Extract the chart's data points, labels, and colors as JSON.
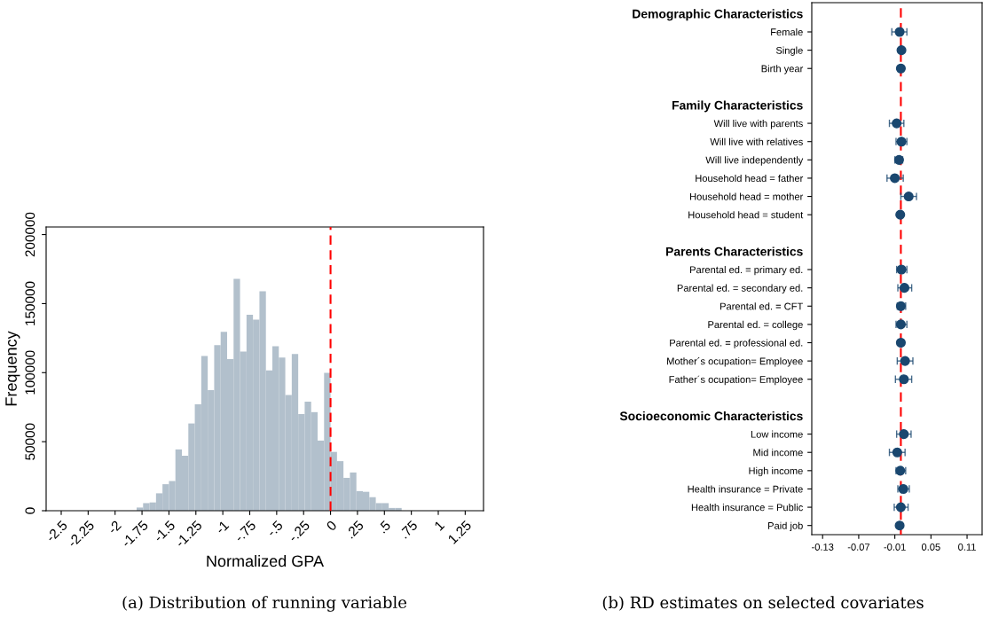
{
  "chart_data": [
    {
      "type": "histogram",
      "xlabel": "Normalized GPA",
      "ylabel": "Frequency",
      "color": "#b2c0cc",
      "bins": [
        -1.98,
        -1.92,
        -1.86,
        -1.8,
        -1.74,
        -1.68,
        -1.62,
        -1.56,
        -1.5,
        -1.44,
        -1.38,
        -1.32,
        -1.26,
        -1.2,
        -1.14,
        -1.08,
        -1.02,
        -0.96,
        -0.9,
        -0.84,
        -0.78,
        -0.72,
        -0.66,
        -0.6,
        -0.54,
        -0.48,
        -0.42,
        -0.36,
        -0.3,
        -0.24,
        -0.18,
        -0.12,
        -0.06,
        0,
        0.06,
        0.12,
        0.18,
        0.24,
        0.3,
        0.36,
        0.42,
        0.48,
        0.54,
        0.6,
        0.66,
        0.72,
        0.78
      ],
      "values": [
        null,
        null,
        null,
        2300,
        5500,
        6000,
        12600,
        19200,
        21500,
        44400,
        39800,
        63200,
        77100,
        112100,
        87400,
        119900,
        129500,
        109800,
        168000,
        115300,
        141900,
        138400,
        159000,
        101600,
        119200,
        111000,
        83800,
        113500,
        70000,
        79000,
        71400,
        50800,
        99800,
        42600,
        35900,
        23800,
        27700,
        14200,
        13700,
        9800,
        5500,
        5500,
        2000,
        2000,
        null,
        null
      ],
      "xlim": [
        -2.64,
        1.42
      ],
      "ylim": [
        0,
        205500
      ],
      "xticks": [
        {
          "value": -2.5,
          "label": "-2.5"
        },
        {
          "value": -2.25,
          "label": "-2.25"
        },
        {
          "value": -2,
          "label": "-2"
        },
        {
          "value": -1.75,
          "label": "-1.75"
        },
        {
          "value": -1.5,
          "label": "-1.5"
        },
        {
          "value": -1.25,
          "label": "-1.25"
        },
        {
          "value": -1,
          "label": "-1"
        },
        {
          "value": -0.75,
          "label": "-.75"
        },
        {
          "value": -0.5,
          "label": "-.5"
        },
        {
          "value": -0.25,
          "label": "-.25"
        },
        0,
        {
          "value": 0.25,
          "label": ".25"
        },
        {
          "value": 0.5,
          "label": ".5"
        },
        {
          "value": 0.75,
          "label": ".75"
        },
        1,
        1.25
      ],
      "yticks": [
        0,
        50000,
        100000,
        150000,
        200000
      ],
      "ref_lines": [
        {
          "axis": "x",
          "value": 0,
          "color": "#ff0000",
          "line_style": "dashed"
        }
      ],
      "annotations": [
        "(a) Distribution of running variable"
      ]
    },
    {
      "type": "scatter",
      "orientation": "horizontal",
      "color": "#1a476f",
      "marker": "circle",
      "categories": [
        "Demographic Characteristics",
        "Female",
        "Single",
        "Birth year",
        null,
        "Family Characteristics",
        "Will live with parents",
        "Will live with relatives",
        "Will live independently",
        "Household head = father",
        "Household head = mother",
        "Household head = student",
        null,
        "Parents Characteristics",
        "Parental ed. = primary ed.",
        "Parental ed. = secondary ed.",
        "Parental ed. = CFT",
        "Parental ed. = college",
        "Parental ed. = professional ed.",
        "Mother´s ocupation= Employee",
        "Father´s ocupation= Employee",
        null,
        "Socioeconomic Characteristics",
        "Low income",
        "Mid income",
        "High income",
        "Health insurance = Private",
        "Health insurance = Public",
        "Paid job"
      ],
      "values": [
        null,
        -0.002,
        0.001,
        0.0,
        null,
        null,
        -0.007,
        0.001,
        -0.003,
        -0.01,
        0.013,
        -0.001,
        null,
        null,
        0.001,
        0.006,
        0.0,
        0.0,
        0.0,
        0.007,
        0.005,
        null,
        null,
        0.005,
        -0.006,
        -0.001,
        0.004,
        0.0,
        -0.002
      ],
      "errors": [
        null,
        [
          -0.015,
          0.01
        ],
        null,
        null,
        null,
        null,
        [
          -0.019,
          0.005
        ],
        [
          -0.008,
          0.01
        ],
        [
          -0.01,
          0.003
        ],
        [
          -0.023,
          0.004
        ],
        [
          0.0,
          0.026
        ],
        null,
        null,
        null,
        [
          -0.007,
          0.01
        ],
        [
          -0.005,
          0.018
        ],
        [
          -0.006,
          0.008
        ],
        [
          -0.008,
          0.01
        ],
        null,
        [
          -0.006,
          0.02
        ],
        [
          -0.009,
          0.018
        ],
        null,
        null,
        [
          -0.007,
          0.017
        ],
        [
          -0.019,
          0.007
        ],
        [
          -0.008,
          0.008
        ],
        [
          -0.005,
          0.014
        ],
        [
          -0.011,
          0.012
        ],
        null
      ],
      "xlim": [
        -0.148,
        0.135
      ],
      "xticks": [
        {
          "value": -0.13,
          "label": "-0.13"
        },
        {
          "value": -0.07,
          "label": "-0.07"
        },
        {
          "value": -0.01,
          "label": "-0.01"
        },
        0.05,
        0.11
      ],
      "ref_lines": [
        {
          "axis": "x",
          "value": 0,
          "color": "#ff0000",
          "line_style": "dashed"
        }
      ],
      "annotations": [
        "(b) RD estimates on selected covariates"
      ]
    }
  ]
}
